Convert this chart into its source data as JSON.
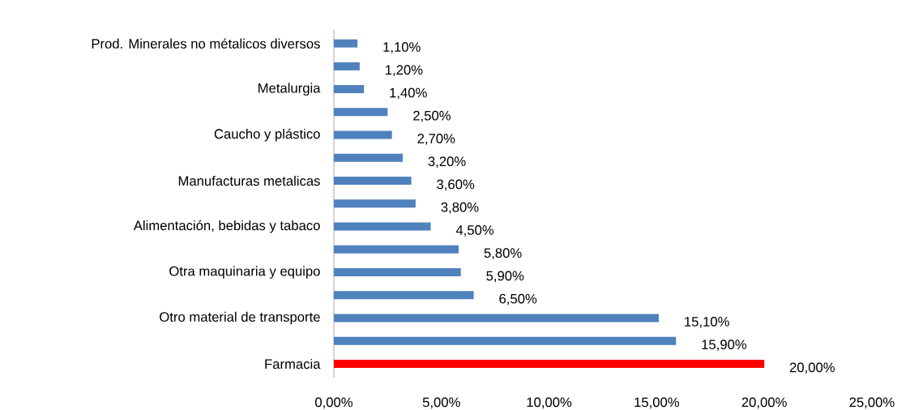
{
  "chart_data": {
    "type": "bar",
    "orientation": "horizontal",
    "categories": [
      "Prod. Minerales no métalicos diversos",
      null,
      "Metalurgia",
      null,
      "Caucho y plástico",
      null,
      "Manufacturas metalicas",
      null,
      "Alimentación, bebidas y tabaco",
      null,
      "Otra maquinaria y equipo",
      null,
      "Otro material de transporte",
      null,
      "Farmacia"
    ],
    "values": [
      1.1,
      1.2,
      1.4,
      2.5,
      2.7,
      3.2,
      3.6,
      3.8,
      4.5,
      5.8,
      5.9,
      6.5,
      15.1,
      15.9,
      20.0
    ],
    "value_labels": [
      "1,10%",
      "1,20%",
      "1,40%",
      "2,50%",
      "2,70%",
      "3,20%",
      "3,60%",
      "3,80%",
      "4,50%",
      "5,80%",
      "5,90%",
      "6,50%",
      "15,10%",
      "15,90%",
      "20,00%"
    ],
    "colors": [
      "#4f81bd",
      "#4f81bd",
      "#4f81bd",
      "#4f81bd",
      "#4f81bd",
      "#4f81bd",
      "#4f81bd",
      "#4f81bd",
      "#4f81bd",
      "#4f81bd",
      "#4f81bd",
      "#4f81bd",
      "#4f81bd",
      "#4f81bd",
      "#ff0000"
    ],
    "xlim": [
      0,
      25
    ],
    "xticks": [
      {
        "value": 0,
        "label": "0,00%"
      },
      {
        "value": 5,
        "label": "5,00%"
      },
      {
        "value": 10,
        "label": "10,00%"
      },
      {
        "value": 15,
        "label": "15,00%"
      },
      {
        "value": 20,
        "label": "20,00%"
      },
      {
        "value": 25,
        "label": "25,00%"
      }
    ]
  }
}
